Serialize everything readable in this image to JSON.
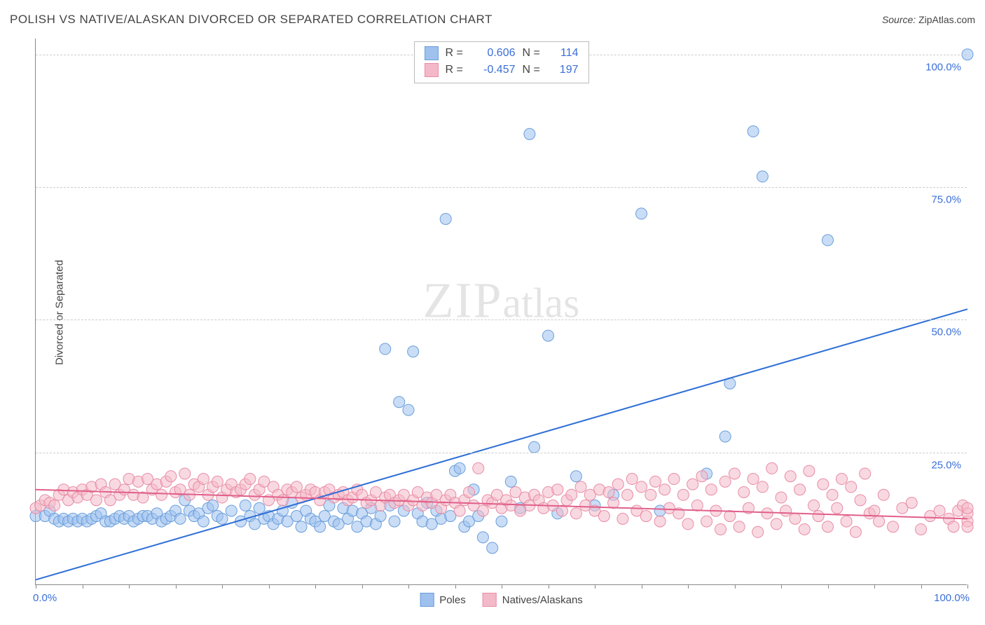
{
  "header": {
    "title": "POLISH VS NATIVE/ALASKAN DIVORCED OR SEPARATED CORRELATION CHART",
    "source_label": "Source:",
    "source_value": "ZipAtlas.com"
  },
  "ylabel": "Divorced or Separated",
  "watermark": {
    "zip": "ZIP",
    "atlas": "atlas"
  },
  "chart": {
    "type": "scatter",
    "xlim": [
      0,
      100
    ],
    "ylim": [
      0,
      103
    ],
    "x_ticks": [
      0,
      5,
      10,
      15,
      20,
      25,
      30,
      35,
      40,
      45,
      50,
      55,
      60,
      65,
      70,
      75,
      80,
      85,
      90,
      95,
      100
    ],
    "y_gridlines": [
      25,
      50,
      75,
      100
    ],
    "y_tick_labels": [
      "25.0%",
      "50.0%",
      "75.0%",
      "100.0%"
    ],
    "x_left_label": "0.0%",
    "x_right_label": "100.0%",
    "grid_color": "#cccccc",
    "axis_color": "#888888",
    "background_color": "#ffffff",
    "marker_radius": 8,
    "marker_opacity": 0.55,
    "series": [
      {
        "name": "Poles",
        "fill": "#9ec1ee",
        "stroke": "#6a9edb",
        "r_value": "0.606",
        "n_value": "114",
        "trend": {
          "x1": 0,
          "y1": 1,
          "x2": 100,
          "y2": 52,
          "color": "#2e6fd6",
          "width": 2
        },
        "points": [
          [
            0,
            13
          ],
          [
            1,
            13
          ],
          [
            1.5,
            14
          ],
          [
            2,
            12.5
          ],
          [
            2.5,
            12
          ],
          [
            3,
            12.5
          ],
          [
            3.5,
            12
          ],
          [
            4,
            12.5
          ],
          [
            4.5,
            12
          ],
          [
            5,
            12.5
          ],
          [
            5.5,
            12
          ],
          [
            6,
            12.5
          ],
          [
            6.5,
            13
          ],
          [
            7,
            13.5
          ],
          [
            7.5,
            12
          ],
          [
            8,
            12
          ],
          [
            8.5,
            12.5
          ],
          [
            9,
            13
          ],
          [
            9.5,
            12.5
          ],
          [
            10,
            13
          ],
          [
            10.5,
            12
          ],
          [
            11,
            12.5
          ],
          [
            11.5,
            13
          ],
          [
            12,
            13
          ],
          [
            12.5,
            12.5
          ],
          [
            13,
            13.5
          ],
          [
            13.5,
            12
          ],
          [
            14,
            12.5
          ],
          [
            14.5,
            13
          ],
          [
            15,
            14
          ],
          [
            15.5,
            12.5
          ],
          [
            16,
            16
          ],
          [
            16.5,
            14
          ],
          [
            17,
            13
          ],
          [
            17.5,
            13.5
          ],
          [
            18,
            12
          ],
          [
            18.5,
            14.5
          ],
          [
            19,
            15
          ],
          [
            19.5,
            13
          ],
          [
            20,
            12.5
          ],
          [
            21,
            14
          ],
          [
            22,
            12
          ],
          [
            22.5,
            15
          ],
          [
            23,
            13
          ],
          [
            23.5,
            11.5
          ],
          [
            24,
            14.5
          ],
          [
            24.5,
            12.5
          ],
          [
            25,
            13
          ],
          [
            25.5,
            11.5
          ],
          [
            26,
            12.5
          ],
          [
            26.5,
            14
          ],
          [
            27,
            12
          ],
          [
            27.5,
            15.5
          ],
          [
            28,
            13
          ],
          [
            28.5,
            11
          ],
          [
            29,
            14
          ],
          [
            29.5,
            12.5
          ],
          [
            30,
            12
          ],
          [
            30.5,
            11
          ],
          [
            31,
            13
          ],
          [
            31.5,
            15
          ],
          [
            32,
            12
          ],
          [
            32.5,
            11.5
          ],
          [
            33,
            14.5
          ],
          [
            33.5,
            12.5
          ],
          [
            34,
            14
          ],
          [
            34.5,
            11
          ],
          [
            35,
            13.5
          ],
          [
            35.5,
            12
          ],
          [
            36,
            14.5
          ],
          [
            36.5,
            11.5
          ],
          [
            37,
            13
          ],
          [
            37.5,
            44.5
          ],
          [
            38,
            15
          ],
          [
            38.5,
            12
          ],
          [
            39,
            34.5
          ],
          [
            39.5,
            14
          ],
          [
            40,
            33
          ],
          [
            40.5,
            44
          ],
          [
            41,
            13.5
          ],
          [
            41.5,
            12
          ],
          [
            42,
            15.5
          ],
          [
            42.5,
            11.5
          ],
          [
            43,
            14
          ],
          [
            43.5,
            12.5
          ],
          [
            44,
            69
          ],
          [
            44.5,
            13
          ],
          [
            45,
            21.5
          ],
          [
            45.5,
            22
          ],
          [
            46,
            11
          ],
          [
            46.5,
            12
          ],
          [
            47,
            18
          ],
          [
            47.5,
            13
          ],
          [
            48,
            9
          ],
          [
            49,
            7
          ],
          [
            50,
            12
          ],
          [
            51,
            19.5
          ],
          [
            52,
            14.5
          ],
          [
            53,
            85
          ],
          [
            53.5,
            26
          ],
          [
            55,
            47
          ],
          [
            56,
            13.5
          ],
          [
            58,
            20.5
          ],
          [
            60,
            15
          ],
          [
            62,
            17
          ],
          [
            65,
            70
          ],
          [
            67,
            14
          ],
          [
            72,
            21
          ],
          [
            74,
            28
          ],
          [
            74.5,
            38
          ],
          [
            77,
            85.5
          ],
          [
            78,
            77
          ],
          [
            85,
            65
          ],
          [
            100,
            100
          ]
        ]
      },
      {
        "name": "Natives/Alaskans",
        "fill": "#f4b9c9",
        "stroke": "#e88ca5",
        "r_value": "-0.457",
        "n_value": "197",
        "trend": {
          "x1": 0,
          "y1": 18,
          "x2": 100,
          "y2": 12.5,
          "color": "#e15f8a",
          "width": 2
        },
        "points": [
          [
            0,
            14.5
          ],
          [
            0.5,
            15
          ],
          [
            1,
            16
          ],
          [
            1.5,
            15.5
          ],
          [
            2,
            15
          ],
          [
            2.5,
            17
          ],
          [
            3,
            18
          ],
          [
            3.5,
            16
          ],
          [
            4,
            17.5
          ],
          [
            4.5,
            16.5
          ],
          [
            5,
            18
          ],
          [
            5.5,
            17
          ],
          [
            6,
            18.5
          ],
          [
            6.5,
            16
          ],
          [
            7,
            19
          ],
          [
            7.5,
            17.5
          ],
          [
            8,
            16
          ],
          [
            8.5,
            19
          ],
          [
            9,
            17
          ],
          [
            9.5,
            18
          ],
          [
            10,
            20
          ],
          [
            10.5,
            17
          ],
          [
            11,
            19.5
          ],
          [
            11.5,
            16.5
          ],
          [
            12,
            20
          ],
          [
            12.5,
            18
          ],
          [
            13,
            19
          ],
          [
            13.5,
            17
          ],
          [
            14,
            19.5
          ],
          [
            14.5,
            20.5
          ],
          [
            15,
            17.5
          ],
          [
            15.5,
            18
          ],
          [
            16,
            21
          ],
          [
            16.5,
            17
          ],
          [
            17,
            19
          ],
          [
            17.5,
            18.5
          ],
          [
            18,
            20
          ],
          [
            18.5,
            17
          ],
          [
            19,
            18.5
          ],
          [
            19.5,
            19.5
          ],
          [
            20,
            16.5
          ],
          [
            20.5,
            18
          ],
          [
            21,
            19
          ],
          [
            21.5,
            17.5
          ],
          [
            22,
            18
          ],
          [
            22.5,
            19
          ],
          [
            23,
            20
          ],
          [
            23.5,
            17
          ],
          [
            24,
            18
          ],
          [
            24.5,
            19.5
          ],
          [
            25,
            16
          ],
          [
            25.5,
            18.5
          ],
          [
            26,
            17
          ],
          [
            26.5,
            16
          ],
          [
            27,
            18
          ],
          [
            27.5,
            17.5
          ],
          [
            28,
            18.5
          ],
          [
            28.5,
            16.5
          ],
          [
            29,
            17
          ],
          [
            29.5,
            18
          ],
          [
            30,
            17.5
          ],
          [
            30.5,
            16
          ],
          [
            31,
            17.5
          ],
          [
            31.5,
            18
          ],
          [
            32,
            16.5
          ],
          [
            32.5,
            17
          ],
          [
            33,
            17.5
          ],
          [
            33.5,
            16
          ],
          [
            34,
            16.5
          ],
          [
            34.5,
            18
          ],
          [
            35,
            17
          ],
          [
            35.5,
            15.5
          ],
          [
            36,
            16
          ],
          [
            36.5,
            17.5
          ],
          [
            37,
            15
          ],
          [
            37.5,
            16.5
          ],
          [
            38,
            17
          ],
          [
            38.5,
            15.5
          ],
          [
            39,
            16
          ],
          [
            39.5,
            17
          ],
          [
            40,
            15
          ],
          [
            40.5,
            16
          ],
          [
            41,
            17.5
          ],
          [
            41.5,
            15
          ],
          [
            42,
            16.5
          ],
          [
            42.5,
            15.5
          ],
          [
            43,
            17
          ],
          [
            43.5,
            14.5
          ],
          [
            44,
            16
          ],
          [
            44.5,
            17
          ],
          [
            45,
            15.5
          ],
          [
            45.5,
            14
          ],
          [
            46,
            16
          ],
          [
            46.5,
            17.5
          ],
          [
            47,
            15
          ],
          [
            47.5,
            22
          ],
          [
            48,
            14
          ],
          [
            48.5,
            16
          ],
          [
            49,
            15.5
          ],
          [
            49.5,
            17
          ],
          [
            50,
            14.5
          ],
          [
            50.5,
            16
          ],
          [
            51,
            15
          ],
          [
            51.5,
            17.5
          ],
          [
            52,
            14
          ],
          [
            52.5,
            16.5
          ],
          [
            53,
            15
          ],
          [
            53.5,
            17
          ],
          [
            54,
            16
          ],
          [
            54.5,
            14.5
          ],
          [
            55,
            17.5
          ],
          [
            55.5,
            15
          ],
          [
            56,
            18
          ],
          [
            56.5,
            14
          ],
          [
            57,
            16
          ],
          [
            57.5,
            17
          ],
          [
            58,
            13.5
          ],
          [
            58.5,
            18.5
          ],
          [
            59,
            15
          ],
          [
            59.5,
            17
          ],
          [
            60,
            14
          ],
          [
            60.5,
            18
          ],
          [
            61,
            13
          ],
          [
            61.5,
            17.5
          ],
          [
            62,
            15.5
          ],
          [
            62.5,
            19
          ],
          [
            63,
            12.5
          ],
          [
            63.5,
            17
          ],
          [
            64,
            20
          ],
          [
            64.5,
            14
          ],
          [
            65,
            18.5
          ],
          [
            65.5,
            13
          ],
          [
            66,
            17
          ],
          [
            66.5,
            19.5
          ],
          [
            67,
            12
          ],
          [
            67.5,
            18
          ],
          [
            68,
            14.5
          ],
          [
            68.5,
            20
          ],
          [
            69,
            13.5
          ],
          [
            69.5,
            17
          ],
          [
            70,
            11.5
          ],
          [
            70.5,
            19
          ],
          [
            71,
            15
          ],
          [
            71.5,
            20.5
          ],
          [
            72,
            12
          ],
          [
            72.5,
            18
          ],
          [
            73,
            14
          ],
          [
            73.5,
            10.5
          ],
          [
            74,
            19.5
          ],
          [
            74.5,
            13
          ],
          [
            75,
            21
          ],
          [
            75.5,
            11
          ],
          [
            76,
            17.5
          ],
          [
            76.5,
            14.5
          ],
          [
            77,
            20
          ],
          [
            77.5,
            10
          ],
          [
            78,
            18.5
          ],
          [
            78.5,
            13.5
          ],
          [
            79,
            22
          ],
          [
            79.5,
            11.5
          ],
          [
            80,
            16.5
          ],
          [
            80.5,
            14
          ],
          [
            81,
            20.5
          ],
          [
            81.5,
            12.5
          ],
          [
            82,
            18
          ],
          [
            82.5,
            10.5
          ],
          [
            83,
            21.5
          ],
          [
            83.5,
            15
          ],
          [
            84,
            13
          ],
          [
            84.5,
            19
          ],
          [
            85,
            11
          ],
          [
            85.5,
            17
          ],
          [
            86,
            14.5
          ],
          [
            86.5,
            20
          ],
          [
            87,
            12
          ],
          [
            87.5,
            18.5
          ],
          [
            88,
            10
          ],
          [
            88.5,
            16
          ],
          [
            89,
            21
          ],
          [
            89.5,
            13.5
          ],
          [
            90,
            14
          ],
          [
            90.5,
            12
          ],
          [
            91,
            17
          ],
          [
            92,
            11
          ],
          [
            93,
            14.5
          ],
          [
            94,
            15.5
          ],
          [
            95,
            10.5
          ],
          [
            96,
            13
          ],
          [
            97,
            14
          ],
          [
            98,
            12.5
          ],
          [
            98.5,
            11
          ],
          [
            99,
            14
          ],
          [
            99.5,
            15
          ],
          [
            100,
            12
          ],
          [
            100,
            11
          ],
          [
            100,
            13.5
          ],
          [
            100,
            14.5
          ]
        ]
      }
    ]
  },
  "legend_top": {
    "r_label": "R  =",
    "n_label": "N  ="
  },
  "legend_bottom": {
    "s1": "Poles",
    "s2": "Natives/Alaskans"
  }
}
